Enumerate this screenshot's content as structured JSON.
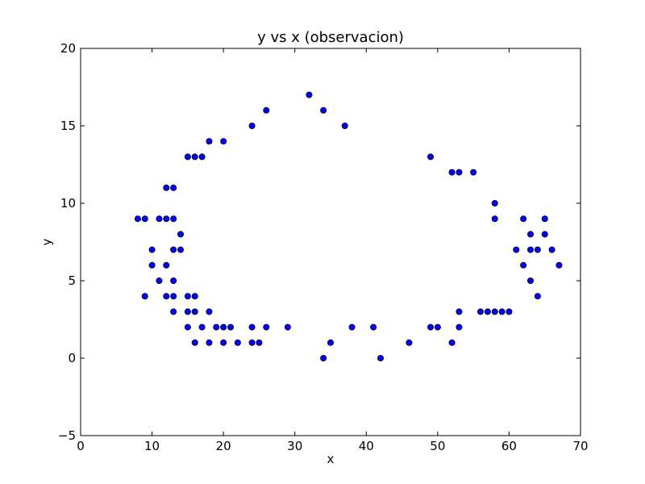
{
  "chart_data": {
    "type": "scatter",
    "title": "y vs x (observacion)",
    "xlabel": "x",
    "ylabel": "y",
    "xlim": [
      0,
      70
    ],
    "ylim": [
      -5,
      20
    ],
    "xticks": [
      0,
      10,
      20,
      30,
      40,
      50,
      60,
      70
    ],
    "yticks": [
      -5,
      0,
      5,
      10,
      15,
      20
    ],
    "xtick_labels": [
      "0",
      "10",
      "20",
      "30",
      "40",
      "50",
      "60",
      "70"
    ],
    "ytick_labels": [
      "−5",
      "0",
      "5",
      "10",
      "15",
      "20"
    ],
    "grid": false,
    "marker_color": "#0000ff",
    "marker_edge_color": "#000000",
    "series": [
      {
        "points": [
          [
            8,
            9
          ],
          [
            9,
            9
          ],
          [
            9,
            4
          ],
          [
            10,
            7
          ],
          [
            10,
            6
          ],
          [
            11,
            9
          ],
          [
            11,
            5
          ],
          [
            12,
            11
          ],
          [
            12,
            9
          ],
          [
            12,
            6
          ],
          [
            12,
            4
          ],
          [
            13,
            11
          ],
          [
            13,
            9
          ],
          [
            13,
            7
          ],
          [
            13,
            5
          ],
          [
            13,
            4
          ],
          [
            13,
            3
          ],
          [
            14,
            8
          ],
          [
            14,
            7
          ],
          [
            15,
            13
          ],
          [
            15,
            4
          ],
          [
            15,
            3
          ],
          [
            15,
            2
          ],
          [
            16,
            13
          ],
          [
            16,
            4
          ],
          [
            16,
            3
          ],
          [
            16,
            1
          ],
          [
            17,
            13
          ],
          [
            17,
            2
          ],
          [
            18,
            14
          ],
          [
            18,
            3
          ],
          [
            18,
            1
          ],
          [
            19,
            2
          ],
          [
            20,
            14
          ],
          [
            20,
            2
          ],
          [
            20,
            1
          ],
          [
            21,
            2
          ],
          [
            22,
            1
          ],
          [
            24,
            15
          ],
          [
            24,
            2
          ],
          [
            24,
            1
          ],
          [
            25,
            1
          ],
          [
            26,
            16
          ],
          [
            26,
            2
          ],
          [
            29,
            2
          ],
          [
            32,
            17
          ],
          [
            34,
            16
          ],
          [
            34,
            0
          ],
          [
            35,
            1
          ],
          [
            37,
            15
          ],
          [
            38,
            2
          ],
          [
            41,
            2
          ],
          [
            42,
            0
          ],
          [
            46,
            1
          ],
          [
            49,
            13
          ],
          [
            49,
            2
          ],
          [
            50,
            2
          ],
          [
            52,
            12
          ],
          [
            52,
            1
          ],
          [
            53,
            12
          ],
          [
            53,
            3
          ],
          [
            53,
            2
          ],
          [
            55,
            12
          ],
          [
            56,
            3
          ],
          [
            57,
            3
          ],
          [
            58,
            10
          ],
          [
            58,
            9
          ],
          [
            58,
            3
          ],
          [
            59,
            3
          ],
          [
            60,
            3
          ],
          [
            61,
            7
          ],
          [
            62,
            9
          ],
          [
            62,
            6
          ],
          [
            63,
            8
          ],
          [
            63,
            7
          ],
          [
            63,
            5
          ],
          [
            64,
            7
          ],
          [
            64,
            4
          ],
          [
            65,
            9
          ],
          [
            65,
            8
          ],
          [
            66,
            7
          ],
          [
            67,
            6
          ]
        ]
      }
    ]
  }
}
